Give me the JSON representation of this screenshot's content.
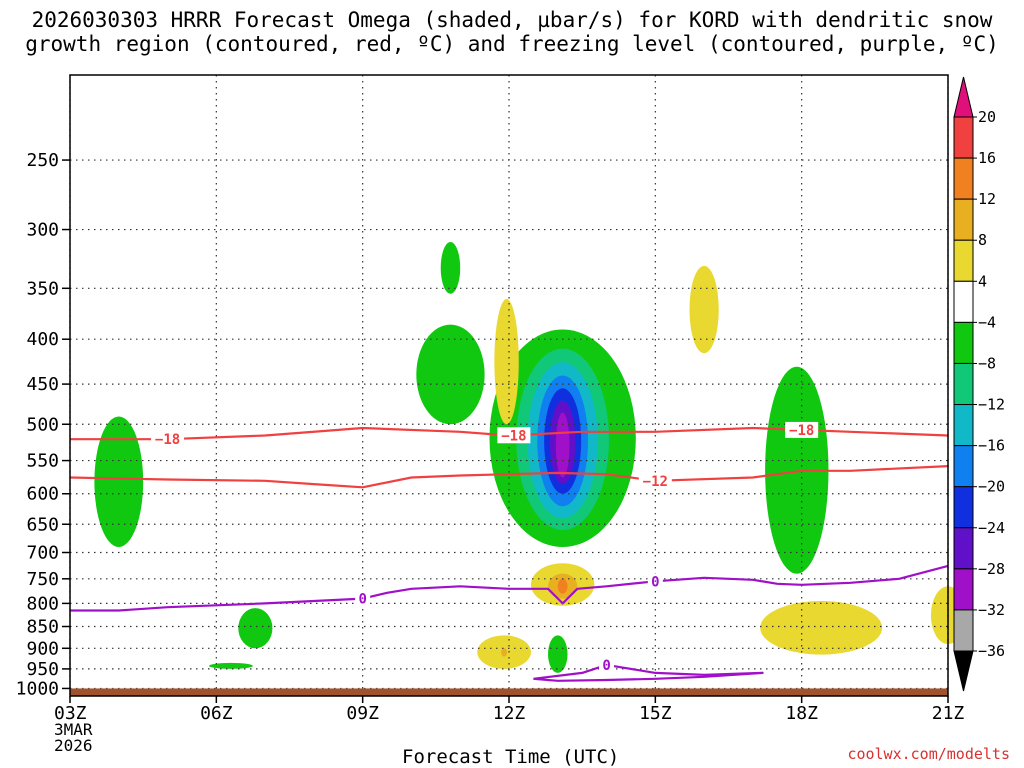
{
  "chart_data": {
    "type": "heatmap",
    "title_line1": "2026030303 HRRR Forecast Omega (shaded, µbar/s) for KORD with dendritic snow",
    "title_line2": "growth region (contoured, red, ºC) and freezing level (contoured, purple, ºC)",
    "xlabel": "Forecast Time (UTC)",
    "x_date_line2": "3MAR",
    "x_date_line3": "2026",
    "credit": "coolwx.com/modelts",
    "x_ticks": [
      {
        "hour": 0,
        "label": "03Z"
      },
      {
        "hour": 3,
        "label": "06Z"
      },
      {
        "hour": 6,
        "label": "09Z"
      },
      {
        "hour": 9,
        "label": "12Z"
      },
      {
        "hour": 12,
        "label": "15Z"
      },
      {
        "hour": 15,
        "label": "18Z"
      },
      {
        "hour": 18,
        "label": "21Z"
      }
    ],
    "xlim": [
      0,
      18
    ],
    "y_ticks": [
      250,
      300,
      350,
      400,
      450,
      500,
      550,
      600,
      650,
      700,
      750,
      800,
      850,
      900,
      950,
      1000
    ],
    "ylim": [
      1020,
      200
    ],
    "ground_pressure": 1000,
    "colorbar": {
      "bins": [
        {
          "low": 20,
          "high": null,
          "color": "#e0107a"
        },
        {
          "low": 16,
          "high": 20,
          "color": "#f04040"
        },
        {
          "low": 12,
          "high": 16,
          "color": "#f08020"
        },
        {
          "low": 8,
          "high": 12,
          "color": "#e8b020"
        },
        {
          "low": 4,
          "high": 8,
          "color": "#e8d830"
        },
        {
          "low": -4,
          "high": 4,
          "color": "#ffffff"
        },
        {
          "low": -8,
          "high": -4,
          "color": "#10c810"
        },
        {
          "low": -12,
          "high": -8,
          "color": "#10c878"
        },
        {
          "low": -16,
          "high": -12,
          "color": "#10b8c8"
        },
        {
          "low": -20,
          "high": -16,
          "color": "#1080f0"
        },
        {
          "low": -24,
          "high": -20,
          "color": "#1030e0"
        },
        {
          "low": -28,
          "high": -24,
          "color": "#6010c8"
        },
        {
          "low": -32,
          "high": -28,
          "color": "#a010c8"
        },
        {
          "low": -36,
          "high": -32,
          "color": "#a8a8a8"
        },
        {
          "low": null,
          "high": -36,
          "color": "#000000"
        }
      ],
      "labels": [
        "20",
        "16",
        "12",
        "8",
        "4",
        "−4",
        "−8",
        "−12",
        "−16",
        "−20",
        "−24",
        "−28",
        "−32",
        "−36"
      ]
    },
    "shaded_regions": [
      {
        "name": "main-updraft",
        "hour_center": 10.1,
        "layers": [
          {
            "omega": -4,
            "color": "#10c810",
            "p_top": 390,
            "p_bottom": 690,
            "half_width_h": 1.5
          },
          {
            "omega": -8,
            "color": "#10c878",
            "p_top": 410,
            "p_bottom": 660,
            "half_width_h": 0.95
          },
          {
            "omega": -12,
            "color": "#10b8c8",
            "p_top": 425,
            "p_bottom": 640,
            "half_width_h": 0.72
          },
          {
            "omega": -16,
            "color": "#1080f0",
            "p_top": 440,
            "p_bottom": 620,
            "half_width_h": 0.52
          },
          {
            "omega": -20,
            "color": "#1030e0",
            "p_top": 455,
            "p_bottom": 600,
            "half_width_h": 0.38
          },
          {
            "omega": -24,
            "color": "#6010c8",
            "p_top": 470,
            "p_bottom": 585,
            "half_width_h": 0.26
          },
          {
            "omega": -28,
            "color": "#a010c8",
            "p_top": 485,
            "p_bottom": 575,
            "half_width_h": 0.14
          }
        ]
      },
      {
        "name": "ascent-0415z",
        "hour_center": 1.0,
        "layers": [
          {
            "omega": -4,
            "color": "#10c810",
            "p_top": 490,
            "p_bottom": 690,
            "half_width_h": 0.5
          }
        ]
      },
      {
        "name": "ascent-0800z-upper",
        "hour_center": 7.8,
        "layers": [
          {
            "omega": -4,
            "color": "#10c810",
            "p_top": 310,
            "p_bottom": 355,
            "half_width_h": 0.2
          }
        ]
      },
      {
        "name": "ascent-0800z-mid",
        "hour_center": 7.8,
        "layers": [
          {
            "omega": -4,
            "color": "#10c810",
            "p_top": 385,
            "p_bottom": 500,
            "half_width_h": 0.7
          }
        ]
      },
      {
        "name": "ascent-0545z-low",
        "hour_center": 3.8,
        "layers": [
          {
            "omega": -4,
            "color": "#10c810",
            "p_top": 810,
            "p_bottom": 900,
            "half_width_h": 0.35
          }
        ]
      },
      {
        "name": "ascent-0500z-sfc",
        "hour_center": 3.3,
        "layers": [
          {
            "omega": -4,
            "color": "#10c810",
            "p_top": 935,
            "p_bottom": 950,
            "half_width_h": 0.45
          }
        ]
      },
      {
        "name": "ascent-1300z-low",
        "hour_center": 10.0,
        "layers": [
          {
            "omega": -4,
            "color": "#10c810",
            "p_top": 870,
            "p_bottom": 960,
            "half_width_h": 0.2
          }
        ]
      },
      {
        "name": "ascent-1800z",
        "hour_center": 14.9,
        "layers": [
          {
            "omega": -4,
            "color": "#10c810",
            "p_top": 430,
            "p_bottom": 740,
            "half_width_h": 0.65
          }
        ]
      },
      {
        "name": "sink-1155z-upper",
        "hour_center": 8.95,
        "layers": [
          {
            "omega": 4,
            "color": "#e8d830",
            "p_top": 360,
            "p_bottom": 500,
            "half_width_h": 0.25
          }
        ]
      },
      {
        "name": "sink-1600z",
        "hour_center": 13.0,
        "layers": [
          {
            "omega": 4,
            "color": "#e8d830",
            "p_top": 330,
            "p_bottom": 415,
            "half_width_h": 0.3
          }
        ]
      },
      {
        "name": "sink-1300z-low",
        "hour_center": 10.1,
        "layers": [
          {
            "omega": 4,
            "color": "#e8d830",
            "p_top": 720,
            "p_bottom": 805,
            "half_width_h": 0.65
          },
          {
            "omega": 8,
            "color": "#e8b020",
            "p_top": 740,
            "p_bottom": 790,
            "half_width_h": 0.3
          },
          {
            "omega": 12,
            "color": "#f08020",
            "p_top": 750,
            "p_bottom": 780,
            "half_width_h": 0.1
          }
        ]
      },
      {
        "name": "sink-1200z-sfc",
        "hour_center": 8.9,
        "layers": [
          {
            "omega": 4,
            "color": "#e8d830",
            "p_top": 870,
            "p_bottom": 950,
            "half_width_h": 0.55
          },
          {
            "omega": 8,
            "color": "#e8b020",
            "p_top": 900,
            "p_bottom": 920,
            "half_width_h": 0.06
          }
        ]
      },
      {
        "name": "sink-1800z-low",
        "hour_center": 15.4,
        "layers": [
          {
            "omega": 4,
            "color": "#e8d830",
            "p_top": 795,
            "p_bottom": 915,
            "half_width_h": 1.25
          }
        ]
      },
      {
        "name": "sink-2100z-low",
        "hour_center": 18.0,
        "layers": [
          {
            "omega": 4,
            "color": "#e8d830",
            "p_top": 765,
            "p_bottom": 890,
            "half_width_h": 0.35
          }
        ]
      }
    ],
    "contours": [
      {
        "name": "isotherm-minus18",
        "color": "#f04040",
        "label": "−18",
        "label_hours": [
          2.0,
          9.1,
          15.0
        ],
        "points": [
          [
            0,
            520
          ],
          [
            2,
            520
          ],
          [
            4,
            515
          ],
          [
            6,
            505
          ],
          [
            8,
            510
          ],
          [
            9,
            515
          ],
          [
            10.5,
            510
          ],
          [
            12,
            510
          ],
          [
            14,
            505
          ],
          [
            16,
            510
          ],
          [
            18,
            515
          ]
        ]
      },
      {
        "name": "isotherm-minus12",
        "color": "#f04040",
        "label": "−12",
        "label_hours": [
          12.0
        ],
        "points": [
          [
            0,
            575
          ],
          [
            2,
            578
          ],
          [
            4,
            580
          ],
          [
            5,
            585
          ],
          [
            6,
            590
          ],
          [
            7,
            575
          ],
          [
            8,
            572
          ],
          [
            9,
            570
          ],
          [
            10,
            568
          ],
          [
            11,
            570
          ],
          [
            12,
            580
          ],
          [
            14,
            575
          ],
          [
            15,
            565
          ],
          [
            16,
            565
          ],
          [
            18,
            558
          ]
        ]
      },
      {
        "name": "freezing-level",
        "color": "#a010c8",
        "label": "0",
        "label_hours": [
          6.0,
          12.0
        ],
        "points": [
          [
            0,
            815
          ],
          [
            1,
            815
          ],
          [
            2,
            808
          ],
          [
            4,
            800
          ],
          [
            5,
            795
          ],
          [
            6,
            790
          ],
          [
            6.5,
            778
          ],
          [
            7,
            770
          ],
          [
            8,
            765
          ],
          [
            9,
            770
          ],
          [
            9.8,
            770
          ],
          [
            10.1,
            800
          ],
          [
            10.4,
            770
          ],
          [
            11,
            765
          ],
          [
            12,
            755
          ],
          [
            13,
            748
          ],
          [
            14,
            752
          ],
          [
            14.5,
            760
          ],
          [
            15,
            762
          ],
          [
            16,
            758
          ],
          [
            17,
            750
          ],
          [
            18,
            725
          ]
        ]
      },
      {
        "name": "freezing-loop",
        "color": "#a010c8",
        "label": "0",
        "label_hours": [
          11.0
        ],
        "points": [
          [
            9.5,
            975
          ],
          [
            10.5,
            960
          ],
          [
            11,
            940
          ],
          [
            12,
            960
          ],
          [
            13,
            965
          ],
          [
            14.2,
            960
          ],
          [
            13,
            970
          ],
          [
            12,
            975
          ],
          [
            11,
            978
          ],
          [
            10,
            980
          ],
          [
            9.5,
            975
          ]
        ]
      }
    ]
  }
}
